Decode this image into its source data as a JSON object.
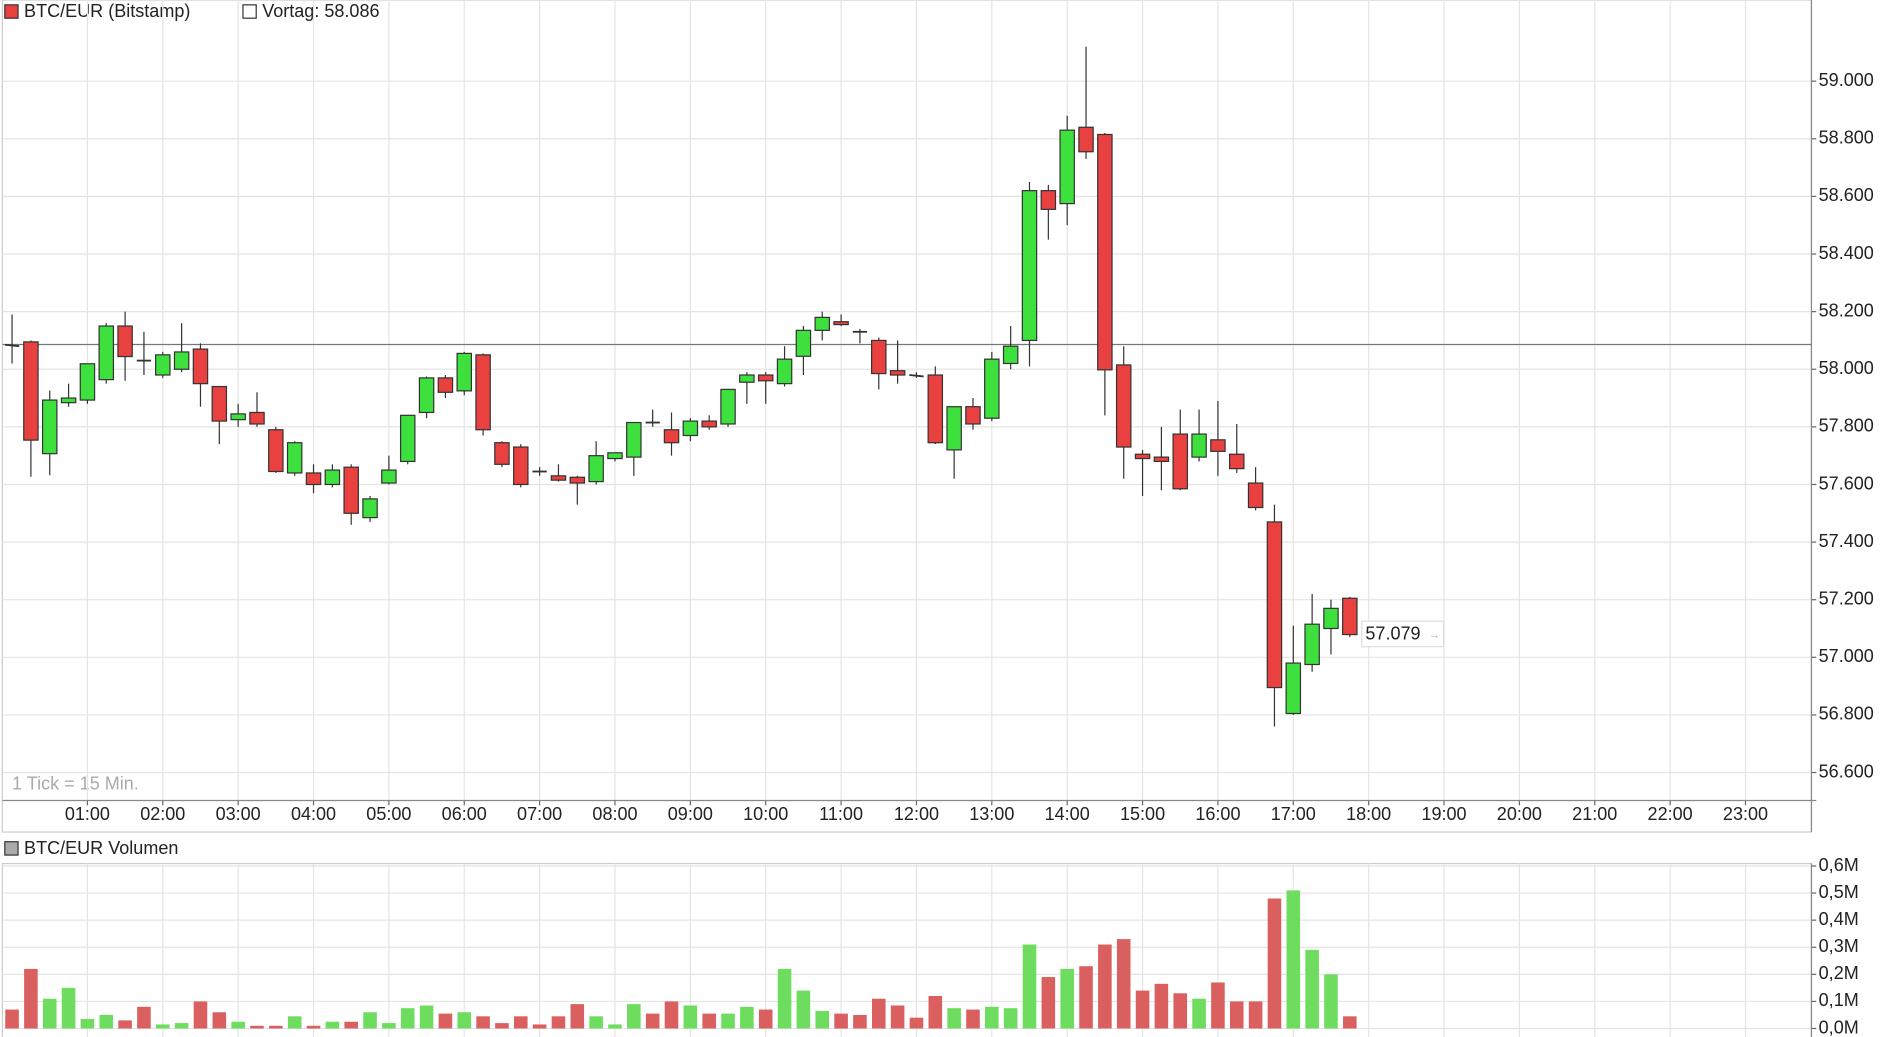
{
  "chart_data": [
    {
      "type": "candlestick",
      "title": "BTC/EUR (Bitstamp)",
      "annotation": "1 Tick = 15 Min.",
      "up_color": "#3de03d",
      "down_color": "#e8413f",
      "outline_color": "#333333",
      "previous_close": {
        "value": 58086,
        "label": "Vortag: 58.086"
      },
      "last_label": "57.079",
      "grid": true,
      "x": [
        0,
        0.25,
        0.5,
        0.75,
        1,
        1.25,
        1.5,
        1.75,
        2,
        2.25,
        2.5,
        2.75,
        3,
        3.25,
        3.5,
        3.75,
        4,
        4.25,
        4.5,
        4.75,
        5,
        5.25,
        5.5,
        5.75,
        6,
        6.25,
        6.5,
        6.75,
        7,
        7.25,
        7.5,
        7.75,
        8,
        8.25,
        8.5,
        8.75,
        9,
        9.25,
        9.5,
        9.75,
        10,
        10.25,
        10.5,
        10.75,
        11,
        11.25,
        11.5,
        11.75,
        12,
        12.25,
        12.5,
        12.75,
        13,
        13.25,
        13.5,
        13.75,
        14,
        14.25,
        14.5,
        14.75,
        15,
        15.25,
        15.5,
        15.75,
        16,
        16.25,
        16.5,
        16.75,
        17,
        17.25,
        17.5,
        17.75
      ],
      "open": [
        58085,
        58095,
        57707,
        57884,
        57893,
        57964,
        58150,
        58030,
        57980,
        58000,
        58070,
        57940,
        57825,
        57850,
        57790,
        57640,
        57640,
        57600,
        57660,
        57485,
        57605,
        57680,
        57850,
        57970,
        57925,
        58050,
        57745,
        57730,
        57645,
        57630,
        57625,
        57610,
        57690,
        57695,
        57815,
        57790,
        57770,
        57820,
        57810,
        57955,
        57980,
        57950,
        58045,
        58135,
        58165,
        58130,
        58100,
        57995,
        57980,
        57980,
        57720,
        57870,
        57830,
        58020,
        58100,
        58620,
        58575,
        58840,
        58815,
        58015,
        57705,
        57695,
        57775,
        57695,
        57755,
        57705,
        57605,
        57470,
        56805,
        56975,
        57100,
        57205
      ],
      "high": [
        58190,
        58100,
        57926,
        57950,
        58020,
        58160,
        58200,
        58130,
        58060,
        58160,
        58090,
        57940,
        57880,
        57920,
        57800,
        57750,
        57670,
        57670,
        57670,
        57560,
        57700,
        57840,
        57975,
        57980,
        58060,
        58055,
        57750,
        57740,
        57660,
        57670,
        57630,
        57750,
        57710,
        57815,
        57860,
        57850,
        57830,
        57840,
        57930,
        57990,
        57990,
        58080,
        58150,
        58200,
        58190,
        58140,
        58110,
        58100,
        57990,
        58010,
        57870,
        57900,
        58060,
        58150,
        58650,
        58640,
        58880,
        59120,
        58820,
        58080,
        57720,
        57800,
        57860,
        57860,
        57890,
        57810,
        57660,
        57530,
        57110,
        57220,
        57200,
        57210
      ],
      "low": [
        58020,
        57627,
        57632,
        57870,
        57880,
        57950,
        57960,
        57980,
        57970,
        57990,
        57870,
        57740,
        57800,
        57800,
        57640,
        57630,
        57570,
        57590,
        57460,
        57470,
        57600,
        57670,
        57830,
        57900,
        57910,
        57770,
        57660,
        57590,
        57630,
        57610,
        57530,
        57600,
        57680,
        57630,
        57800,
        57700,
        57750,
        57790,
        57800,
        57880,
        57880,
        57940,
        57980,
        58100,
        58150,
        58090,
        57930,
        57950,
        57970,
        57740,
        57620,
        57790,
        57820,
        58000,
        58010,
        58450,
        58500,
        58730,
        57840,
        57620,
        57560,
        57580,
        57580,
        57680,
        57630,
        57640,
        57510,
        56760,
        56800,
        56950,
        57010,
        57070
      ],
      "close": [
        58080,
        57754,
        57893,
        57900,
        58019,
        58150,
        58044,
        58030,
        58050,
        58060,
        57950,
        57820,
        57845,
        57810,
        57645,
        57745,
        57600,
        57650,
        57500,
        57550,
        57650,
        57840,
        57970,
        57920,
        58055,
        57790,
        57670,
        57600,
        57645,
        57615,
        57605,
        57700,
        57710,
        57815,
        57815,
        57745,
        57820,
        57800,
        57930,
        57980,
        57960,
        58035,
        58135,
        58180,
        58155,
        58130,
        57985,
        57980,
        57975,
        57745,
        57870,
        57810,
        58035,
        58080,
        58620,
        58555,
        58830,
        58755,
        57998,
        57730,
        57690,
        57680,
        57585,
        57775,
        57715,
        57655,
        57520,
        56895,
        56980,
        57115,
        57170,
        57079
      ],
      "xlim": [
        -0.128,
        23.875
      ],
      "xticks": [
        {
          "value": 1,
          "label": "01:00"
        },
        {
          "value": 2,
          "label": "02:00"
        },
        {
          "value": 3,
          "label": "03:00"
        },
        {
          "value": 4,
          "label": "04:00"
        },
        {
          "value": 5,
          "label": "05:00"
        },
        {
          "value": 6,
          "label": "06:00"
        },
        {
          "value": 7,
          "label": "07:00"
        },
        {
          "value": 8,
          "label": "08:00"
        },
        {
          "value": 9,
          "label": "09:00"
        },
        {
          "value": 10,
          "label": "10:00"
        },
        {
          "value": 11,
          "label": "11:00"
        },
        {
          "value": 12,
          "label": "12:00"
        },
        {
          "value": 13,
          "label": "13:00"
        },
        {
          "value": 14,
          "label": "14:00"
        },
        {
          "value": 15,
          "label": "15:00"
        },
        {
          "value": 16,
          "label": "16:00"
        },
        {
          "value": 17,
          "label": "17:00"
        },
        {
          "value": 18,
          "label": "18:00"
        },
        {
          "value": 19,
          "label": "19:00"
        },
        {
          "value": 20,
          "label": "20:00"
        },
        {
          "value": 21,
          "label": "21:00"
        },
        {
          "value": 22,
          "label": "22:00"
        },
        {
          "value": 23,
          "label": "23:00"
        }
      ],
      "ylim": [
        56503,
        59206
      ],
      "yticks": [
        {
          "value": 56600,
          "label": "56.600"
        },
        {
          "value": 56800,
          "label": "56.800"
        },
        {
          "value": 57000,
          "label": "57.000"
        },
        {
          "value": 57200,
          "label": "57.200"
        },
        {
          "value": 57400,
          "label": "57.400"
        },
        {
          "value": 57600,
          "label": "57.600"
        },
        {
          "value": 57800,
          "label": "57.800"
        },
        {
          "value": 58000,
          "label": "58.000"
        },
        {
          "value": 58200,
          "label": "58.200"
        },
        {
          "value": 58400,
          "label": "58.400"
        },
        {
          "value": 58600,
          "label": "58.600"
        },
        {
          "value": 58800,
          "label": "58.800"
        },
        {
          "value": 59000,
          "label": "59.000"
        }
      ]
    },
    {
      "type": "bar",
      "title": "BTC/EUR Volumen",
      "up_color": "#6edc5e",
      "down_color": "#d9605f",
      "grid": true,
      "x": [
        0,
        0.25,
        0.5,
        0.75,
        1,
        1.25,
        1.5,
        1.75,
        2,
        2.25,
        2.5,
        2.75,
        3,
        3.25,
        3.5,
        3.75,
        4,
        4.25,
        4.5,
        4.75,
        5,
        5.25,
        5.5,
        5.75,
        6,
        6.25,
        6.5,
        6.75,
        7,
        7.25,
        7.5,
        7.75,
        8,
        8.25,
        8.5,
        8.75,
        9,
        9.25,
        9.5,
        9.75,
        10,
        10.25,
        10.5,
        10.75,
        11,
        11.25,
        11.5,
        11.75,
        12,
        12.25,
        12.5,
        12.75,
        13,
        13.25,
        13.5,
        13.75,
        14,
        14.25,
        14.5,
        14.75,
        15,
        15.25,
        15.5,
        15.75,
        16,
        16.25,
        16.5,
        16.75,
        17,
        17.25,
        17.5,
        17.75
      ],
      "values": [
        0.07,
        0.22,
        0.11,
        0.15,
        0.035,
        0.05,
        0.03,
        0.08,
        0.015,
        0.02,
        0.1,
        0.06,
        0.025,
        0.01,
        0.01,
        0.045,
        0.01,
        0.025,
        0.025,
        0.06,
        0.02,
        0.075,
        0.085,
        0.055,
        0.06,
        0.045,
        0.02,
        0.045,
        0.015,
        0.045,
        0.09,
        0.045,
        0.015,
        0.09,
        0.055,
        0.1,
        0.085,
        0.055,
        0.055,
        0.08,
        0.07,
        0.22,
        0.14,
        0.065,
        0.055,
        0.05,
        0.11,
        0.085,
        0.04,
        0.12,
        0.075,
        0.07,
        0.08,
        0.075,
        0.31,
        0.19,
        0.22,
        0.23,
        0.31,
        0.33,
        0.14,
        0.165,
        0.13,
        0.11,
        0.17,
        0.1,
        0.1,
        0.48,
        0.51,
        0.29,
        0.2,
        0.045
      ],
      "xlim": [
        -0.128,
        23.875
      ],
      "ylim": [
        0,
        0.6
      ],
      "yticks": [
        {
          "value": 0,
          "label": "0,0M"
        },
        {
          "value": 0.1,
          "label": "0,1M"
        },
        {
          "value": 0.2,
          "label": "0,2M"
        },
        {
          "value": 0.3,
          "label": "0,3M"
        },
        {
          "value": 0.4,
          "label": "0,4M"
        },
        {
          "value": 0.5,
          "label": "0,5M"
        },
        {
          "value": 0.6,
          "label": "0,6M"
        }
      ]
    }
  ]
}
